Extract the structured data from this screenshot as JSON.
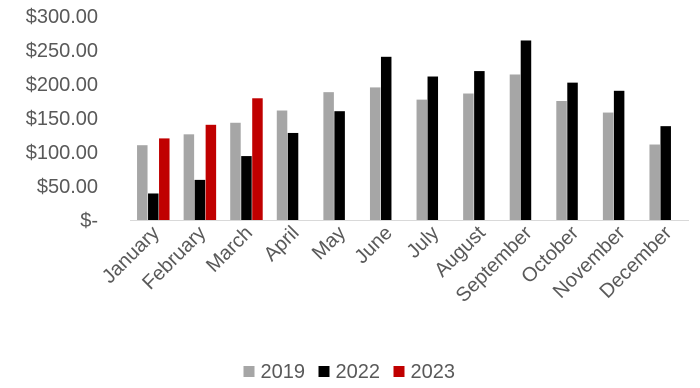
{
  "chart_data": {
    "type": "bar",
    "categories": [
      "January",
      "February",
      "March",
      "April",
      "May",
      "June",
      "July",
      "August",
      "September",
      "October",
      "November",
      "December"
    ],
    "series": [
      {
        "name": "2019",
        "color": "#a6a6a6",
        "values": [
          110,
          126,
          143,
          161,
          188,
          195,
          177,
          186,
          214,
          175,
          158,
          111
        ]
      },
      {
        "name": "2022",
        "color": "#000000",
        "values": [
          39,
          59,
          94,
          128,
          160,
          240,
          211,
          219,
          264,
          202,
          190,
          138
        ]
      },
      {
        "name": "2023",
        "color": "#c00000",
        "values": [
          120,
          140,
          179,
          null,
          null,
          null,
          null,
          null,
          null,
          null,
          null,
          null
        ]
      }
    ],
    "y_ticks": [
      "$-",
      "$50.00",
      "$100.00",
      "$150.00",
      "$200.00",
      "$250.00",
      "$300.00"
    ],
    "y_tick_values": [
      0,
      50,
      100,
      150,
      200,
      250,
      300
    ],
    "ylim": [
      0,
      300
    ],
    "grid": false,
    "legend_position": "bottom"
  }
}
